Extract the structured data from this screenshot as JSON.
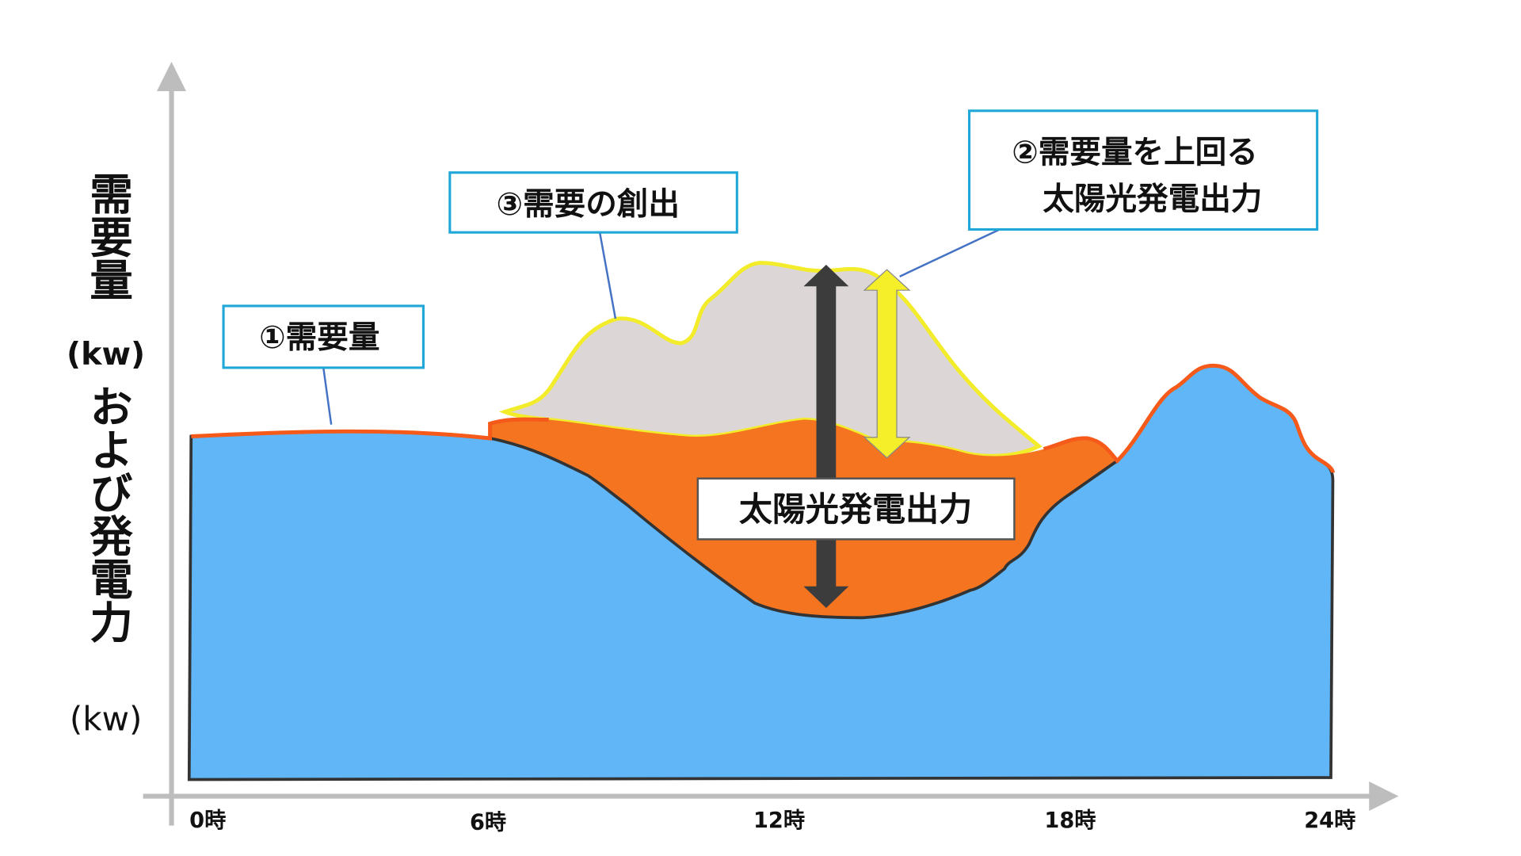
{
  "y_axis_label": {
    "lines": [
      "需要量",
      "(kw)",
      "および発電力",
      "(kw)"
    ]
  },
  "x_axis_labels": [
    "0時",
    "6時",
    "12時",
    "18時",
    "24時"
  ],
  "callouts": {
    "demand": "①需要量",
    "creation": "③需要の創出",
    "surplus": {
      "lines": [
        "②需要量を上回る",
        "太陽光発電出力"
      ]
    },
    "solar": "太陽光発電出力"
  }
}
